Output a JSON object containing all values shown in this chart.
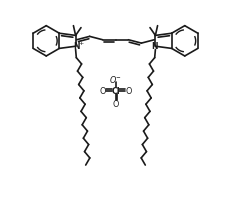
{
  "bg_color": "#ffffff",
  "line_color": "#1a1a1a",
  "line_width": 1.2,
  "fig_width": 2.31,
  "fig_height": 2.07,
  "dpi": 100,
  "xlim": [
    0,
    100
  ],
  "ylim": [
    0,
    95
  ]
}
